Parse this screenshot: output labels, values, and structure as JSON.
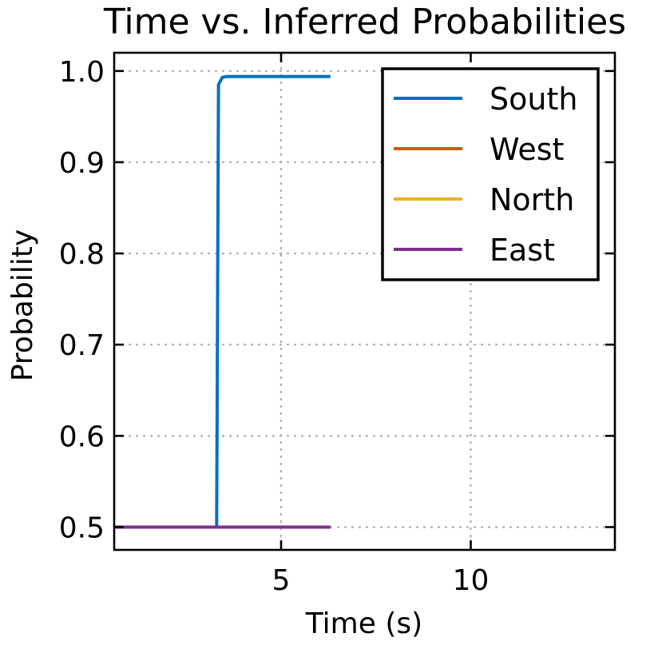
{
  "chart_data": {
    "type": "line",
    "title": "Time vs. Inferred Probabilities",
    "xlabel": "Time (s)",
    "ylabel": "Probability",
    "xlim": [
      0.6,
      13.8
    ],
    "ylim": [
      0.475,
      1.02
    ],
    "xticks": [
      5,
      10
    ],
    "yticks": [
      0.5,
      0.6,
      0.7,
      0.8,
      0.9,
      1.0
    ],
    "ytick_labels": [
      "0.5",
      "0.6",
      "0.7",
      "0.8",
      "0.9",
      "1.0"
    ],
    "grid": true,
    "legend_position": "top-right",
    "series": [
      {
        "name": "South",
        "color": "#0072bd",
        "x": [
          0.6,
          3.3,
          3.35,
          3.45,
          3.55,
          6.3
        ],
        "y": [
          0.5,
          0.5,
          0.985,
          0.993,
          0.994,
          0.994
        ]
      },
      {
        "name": "West",
        "color": "#d95319",
        "x": [
          0.6,
          6.3
        ],
        "y": [
          0.5,
          0.5
        ]
      },
      {
        "name": "North",
        "color": "#edb120",
        "x": [
          0.6,
          6.3
        ],
        "y": [
          0.5,
          0.5
        ]
      },
      {
        "name": "East",
        "color": "#7e2f8e",
        "x": [
          0.6,
          6.3
        ],
        "y": [
          0.5,
          0.5
        ]
      }
    ]
  }
}
